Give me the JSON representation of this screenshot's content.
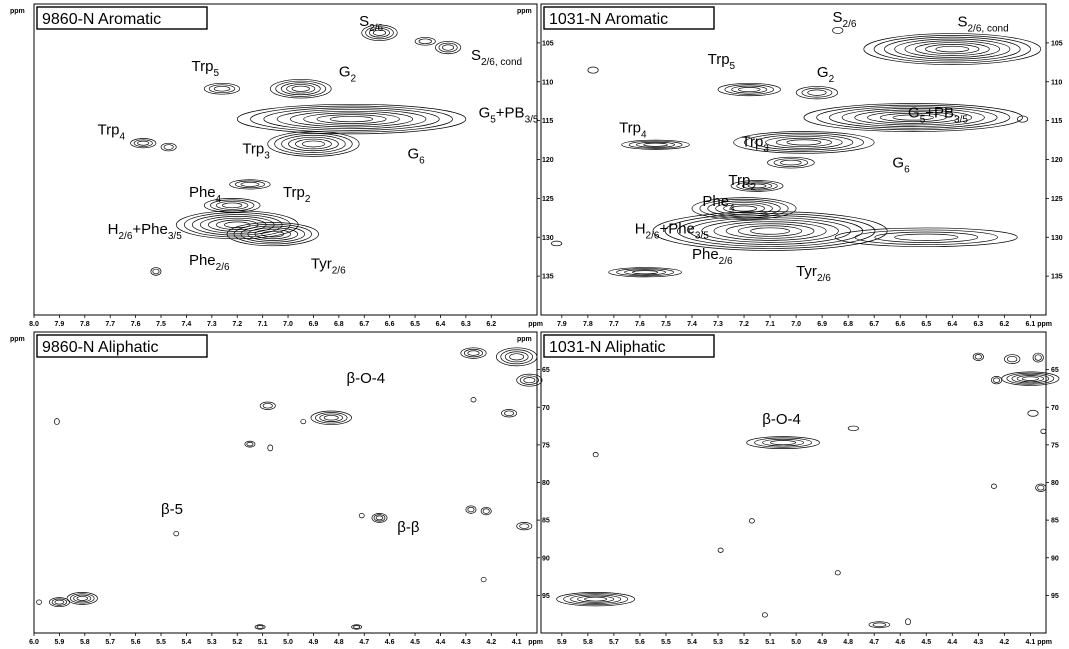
{
  "chart_data": [
    {
      "type": "contour",
      "title": "9860-N Aromatic",
      "x_unit": "ppm",
      "y_unit": "ppm",
      "xlim": [
        8.0,
        6.02
      ],
      "ylim": [
        100,
        140
      ],
      "x_ticks": [
        "8.0",
        "7.9",
        "7.8",
        "7.7",
        "7.6",
        "7.5",
        "7.4",
        "7.3",
        "7.2",
        "7.1",
        "7.0",
        "6.9",
        "6.8",
        "6.7",
        "6.6",
        "6.5",
        "6.4",
        "6.3",
        "6.2"
      ],
      "y_ticks": [
        "105",
        "110",
        "115",
        "120",
        "125",
        "130",
        "135"
      ],
      "labels": [
        {
          "main": "S",
          "sub": "2/6",
          "suffix": "",
          "x": 6.72,
          "y": 102.8
        },
        {
          "main": "S",
          "sub": "2/6, cond",
          "suffix": "",
          "x": 6.28,
          "y": 107.2
        },
        {
          "main": "Trp",
          "sub": "5",
          "suffix": "",
          "x": 7.38,
          "y": 108.6
        },
        {
          "main": "G",
          "sub": "2",
          "suffix": "",
          "x": 6.8,
          "y": 109.3
        },
        {
          "main": "G",
          "sub": "5",
          "suffix": "+PB",
          "sub2": "3/5",
          "x": 6.25,
          "y": 114.6
        },
        {
          "main": "Trp",
          "sub": "4",
          "suffix": "",
          "x": 7.75,
          "y": 116.8
        },
        {
          "main": "Trp",
          "sub": "3",
          "suffix": "",
          "x": 7.18,
          "y": 119.2
        },
        {
          "main": "G",
          "sub": "6",
          "suffix": "",
          "x": 6.53,
          "y": 119.9
        },
        {
          "main": "Phe",
          "sub": "4",
          "suffix": "",
          "x": 7.39,
          "y": 124.8
        },
        {
          "main": "Trp",
          "sub": "2",
          "suffix": "",
          "x": 7.02,
          "y": 124.8
        },
        {
          "main": "H",
          "sub": "2/6",
          "suffix": "+Phe",
          "sub2": "3/5",
          "x": 7.71,
          "y": 129.6
        },
        {
          "main": "Phe",
          "sub": "2/6",
          "suffix": "",
          "x": 7.39,
          "y": 133.6
        },
        {
          "main": "Tyr",
          "sub": "2/6",
          "suffix": "",
          "x": 6.91,
          "y": 134.0
        }
      ],
      "peaks": [
        {
          "x": 6.64,
          "y": 103.7,
          "w": 0.07,
          "h": 1.0,
          "n": 4
        },
        {
          "x": 6.46,
          "y": 104.8,
          "w": 0.04,
          "h": 0.5,
          "n": 2
        },
        {
          "x": 6.37,
          "y": 105.6,
          "w": 0.05,
          "h": 0.8,
          "n": 3
        },
        {
          "x": 7.26,
          "y": 110.9,
          "w": 0.07,
          "h": 0.7,
          "n": 3
        },
        {
          "x": 6.95,
          "y": 110.9,
          "w": 0.12,
          "h": 1.2,
          "n": 5
        },
        {
          "x": 6.75,
          "y": 114.8,
          "w": 0.45,
          "h": 1.9,
          "n": 8
        },
        {
          "x": 6.9,
          "y": 118.0,
          "w": 0.18,
          "h": 1.6,
          "n": 6
        },
        {
          "x": 7.57,
          "y": 117.9,
          "w": 0.05,
          "h": 0.6,
          "n": 3
        },
        {
          "x": 7.47,
          "y": 118.4,
          "w": 0.03,
          "h": 0.5,
          "n": 2
        },
        {
          "x": 7.15,
          "y": 123.2,
          "w": 0.08,
          "h": 0.6,
          "n": 3
        },
        {
          "x": 7.22,
          "y": 125.9,
          "w": 0.11,
          "h": 0.9,
          "n": 4
        },
        {
          "x": 7.2,
          "y": 128.4,
          "w": 0.24,
          "h": 1.8,
          "n": 7
        },
        {
          "x": 7.06,
          "y": 129.6,
          "w": 0.18,
          "h": 1.5,
          "n": 6
        },
        {
          "x": 7.52,
          "y": 134.4,
          "w": 0.02,
          "h": 0.5,
          "n": 2
        }
      ]
    },
    {
      "type": "contour",
      "title": "1031-N Aromatic",
      "x_unit": "ppm",
      "y_unit": "ppm",
      "xlim": [
        7.98,
        6.04
      ],
      "ylim": [
        100,
        140
      ],
      "x_ticks": [
        "7.9",
        "7.8",
        "7.7",
        "7.6",
        "7.5",
        "7.4",
        "7.3",
        "7.2",
        "7.1",
        "7.0",
        "6.9",
        "6.8",
        "6.7",
        "6.6",
        "6.5",
        "6.4",
        "6.3",
        "6.2",
        "6.1"
      ],
      "y_ticks": [
        "105",
        "110",
        "115",
        "120",
        "125",
        "130",
        "135"
      ],
      "labels": [
        {
          "main": "S",
          "sub": "2/6",
          "suffix": "",
          "x": 6.86,
          "y": 102.3
        },
        {
          "main": "S",
          "sub": "2/6, cond",
          "suffix": "",
          "x": 6.38,
          "y": 102.9
        },
        {
          "main": "Trp",
          "sub": "5",
          "suffix": "",
          "x": 7.34,
          "y": 107.7
        },
        {
          "main": "G",
          "sub": "2",
          "suffix": "",
          "x": 6.92,
          "y": 109.4
        },
        {
          "main": "G",
          "sub": "5",
          "suffix": "+PB",
          "sub2": "3/5",
          "x": 6.57,
          "y": 114.6
        },
        {
          "main": "Trp",
          "sub": "4",
          "suffix": "",
          "x": 7.68,
          "y": 116.5
        },
        {
          "main": "Trp",
          "sub": "3",
          "suffix": "",
          "x": 7.21,
          "y": 118.3
        },
        {
          "main": "G",
          "sub": "6",
          "suffix": "",
          "x": 6.63,
          "y": 121.0
        },
        {
          "main": "Trp",
          "sub": "2",
          "suffix": "",
          "x": 7.26,
          "y": 123.3
        },
        {
          "main": "Phe",
          "sub": "4",
          "suffix": "",
          "x": 7.36,
          "y": 126.0
        },
        {
          "main": "H",
          "sub": "2/6",
          "suffix": "+Phe",
          "sub2": "3/5",
          "x": 7.62,
          "y": 129.5
        },
        {
          "main": "Phe",
          "sub": "2/6",
          "suffix": "",
          "x": 7.4,
          "y": 132.8
        },
        {
          "main": "Tyr",
          "sub": "2/6",
          "suffix": "",
          "x": 7.0,
          "y": 135.0
        }
      ],
      "peaks": [
        {
          "x": 6.4,
          "y": 105.8,
          "w": 0.34,
          "h": 2.0,
          "n": 8
        },
        {
          "x": 6.84,
          "y": 103.4,
          "w": 0.02,
          "h": 0.4,
          "n": 1
        },
        {
          "x": 7.78,
          "y": 108.5,
          "w": 0.02,
          "h": 0.4,
          "n": 1
        },
        {
          "x": 7.18,
          "y": 111.0,
          "w": 0.12,
          "h": 0.8,
          "n": 4
        },
        {
          "x": 6.92,
          "y": 111.4,
          "w": 0.08,
          "h": 0.8,
          "n": 3
        },
        {
          "x": 6.55,
          "y": 114.6,
          "w": 0.42,
          "h": 1.8,
          "n": 8
        },
        {
          "x": 6.97,
          "y": 117.8,
          "w": 0.27,
          "h": 1.4,
          "n": 6
        },
        {
          "x": 7.54,
          "y": 118.1,
          "w": 0.13,
          "h": 0.6,
          "n": 4
        },
        {
          "x": 7.02,
          "y": 120.4,
          "w": 0.09,
          "h": 0.7,
          "n": 3
        },
        {
          "x": 7.15,
          "y": 123.4,
          "w": 0.1,
          "h": 0.7,
          "n": 4
        },
        {
          "x": 7.2,
          "y": 126.3,
          "w": 0.2,
          "h": 1.4,
          "n": 6
        },
        {
          "x": 7.1,
          "y": 129.2,
          "w": 0.45,
          "h": 2.5,
          "n": 9
        },
        {
          "x": 6.5,
          "y": 130.0,
          "w": 0.35,
          "h": 1.2,
          "n": 4
        },
        {
          "x": 7.58,
          "y": 134.5,
          "w": 0.14,
          "h": 0.6,
          "n": 4
        },
        {
          "x": 7.92,
          "y": 130.8,
          "w": 0.02,
          "h": 0.3,
          "n": 1
        },
        {
          "x": 6.13,
          "y": 114.8,
          "w": 0.02,
          "h": 0.4,
          "n": 1
        }
      ]
    },
    {
      "type": "contour",
      "title": "9860-N Aliphatic",
      "x_unit": "ppm",
      "y_unit": "ppm",
      "xlim": [
        6.0,
        4.02
      ],
      "ylim": [
        60,
        100
      ],
      "x_ticks": [
        "6.0",
        "5.9",
        "5.8",
        "5.7",
        "5.6",
        "5.5",
        "5.4",
        "5.3",
        "5.2",
        "5.1",
        "5.0",
        "4.9",
        "4.8",
        "4.7",
        "4.6",
        "4.5",
        "4.4",
        "4.3",
        "4.2",
        "4.1"
      ],
      "y_ticks": [
        "65",
        "70",
        "75",
        "80",
        "85",
        "90",
        "95"
      ],
      "labels": [
        {
          "main": "β-O-4",
          "sub": "",
          "suffix": "",
          "x": 4.77,
          "y": 66.8
        },
        {
          "main": "β-5",
          "sub": "",
          "suffix": "",
          "x": 5.5,
          "y": 84.2
        },
        {
          "main": "β-β",
          "sub": "",
          "suffix": "",
          "x": 4.57,
          "y": 86.6
        }
      ],
      "peaks": [
        {
          "x": 4.83,
          "y": 71.4,
          "w": 0.08,
          "h": 0.9,
          "n": 4
        },
        {
          "x": 5.08,
          "y": 69.8,
          "w": 0.03,
          "h": 0.5,
          "n": 2
        },
        {
          "x": 5.15,
          "y": 74.9,
          "w": 0.02,
          "h": 0.4,
          "n": 2
        },
        {
          "x": 5.07,
          "y": 75.4,
          "w": 0.01,
          "h": 0.4,
          "n": 1
        },
        {
          "x": 4.94,
          "y": 71.9,
          "w": 0.01,
          "h": 0.3,
          "n": 1
        },
        {
          "x": 5.91,
          "y": 71.9,
          "w": 0.01,
          "h": 0.4,
          "n": 1
        },
        {
          "x": 4.27,
          "y": 69.0,
          "w": 0.01,
          "h": 0.3,
          "n": 1
        },
        {
          "x": 4.13,
          "y": 70.8,
          "w": 0.03,
          "h": 0.5,
          "n": 2
        },
        {
          "x": 4.1,
          "y": 63.3,
          "w": 0.08,
          "h": 1.2,
          "n": 4
        },
        {
          "x": 4.27,
          "y": 62.8,
          "w": 0.05,
          "h": 0.7,
          "n": 3
        },
        {
          "x": 4.05,
          "y": 66.4,
          "w": 0.05,
          "h": 0.8,
          "n": 3
        },
        {
          "x": 4.64,
          "y": 84.7,
          "w": 0.03,
          "h": 0.6,
          "n": 3
        },
        {
          "x": 4.71,
          "y": 84.4,
          "w": 0.01,
          "h": 0.3,
          "n": 1
        },
        {
          "x": 4.28,
          "y": 83.6,
          "w": 0.02,
          "h": 0.5,
          "n": 2
        },
        {
          "x": 4.22,
          "y": 83.8,
          "w": 0.02,
          "h": 0.5,
          "n": 2
        },
        {
          "x": 4.07,
          "y": 85.8,
          "w": 0.03,
          "h": 0.5,
          "n": 2
        },
        {
          "x": 5.44,
          "y": 86.8,
          "w": 0.01,
          "h": 0.3,
          "n": 1
        },
        {
          "x": 5.81,
          "y": 95.4,
          "w": 0.06,
          "h": 0.8,
          "n": 4
        },
        {
          "x": 5.9,
          "y": 95.9,
          "w": 0.04,
          "h": 0.6,
          "n": 3
        },
        {
          "x": 5.98,
          "y": 95.9,
          "w": 0.01,
          "h": 0.3,
          "n": 1
        },
        {
          "x": 5.11,
          "y": 99.2,
          "w": 0.02,
          "h": 0.3,
          "n": 2
        },
        {
          "x": 4.73,
          "y": 99.2,
          "w": 0.02,
          "h": 0.3,
          "n": 2
        },
        {
          "x": 4.23,
          "y": 92.9,
          "w": 0.01,
          "h": 0.3,
          "n": 1
        }
      ]
    },
    {
      "type": "contour",
      "title": "1031-N Aliphatic",
      "x_unit": "ppm",
      "y_unit": "ppm",
      "xlim": [
        5.98,
        4.04
      ],
      "ylim": [
        60,
        100
      ],
      "x_ticks": [
        "5.9",
        "5.8",
        "5.7",
        "5.6",
        "5.5",
        "5.4",
        "5.3",
        "5.2",
        "5.1",
        "5.0",
        "4.9",
        "4.8",
        "4.7",
        "4.6",
        "4.5",
        "4.4",
        "4.3",
        "4.2",
        "4.1"
      ],
      "y_ticks": [
        "65",
        "70",
        "75",
        "80",
        "85",
        "90",
        "95"
      ],
      "labels": [
        {
          "main": "β-O-4",
          "sub": "",
          "suffix": "",
          "x": 5.13,
          "y": 72.2
        }
      ],
      "peaks": [
        {
          "x": 5.05,
          "y": 74.7,
          "w": 0.14,
          "h": 0.8,
          "n": 4
        },
        {
          "x": 4.78,
          "y": 72.8,
          "w": 0.02,
          "h": 0.3,
          "n": 1
        },
        {
          "x": 4.1,
          "y": 66.2,
          "w": 0.11,
          "h": 0.9,
          "n": 5
        },
        {
          "x": 4.23,
          "y": 66.4,
          "w": 0.02,
          "h": 0.5,
          "n": 2
        },
        {
          "x": 4.3,
          "y": 63.3,
          "w": 0.02,
          "h": 0.5,
          "n": 2
        },
        {
          "x": 4.17,
          "y": 63.6,
          "w": 0.03,
          "h": 0.6,
          "n": 2
        },
        {
          "x": 4.07,
          "y": 63.4,
          "w": 0.02,
          "h": 0.6,
          "n": 2
        },
        {
          "x": 4.09,
          "y": 70.8,
          "w": 0.02,
          "h": 0.4,
          "n": 1
        },
        {
          "x": 4.05,
          "y": 73.2,
          "w": 0.01,
          "h": 0.3,
          "n": 1
        },
        {
          "x": 4.06,
          "y": 80.7,
          "w": 0.02,
          "h": 0.5,
          "n": 2
        },
        {
          "x": 4.24,
          "y": 80.5,
          "w": 0.01,
          "h": 0.3,
          "n": 1
        },
        {
          "x": 5.77,
          "y": 95.5,
          "w": 0.15,
          "h": 0.9,
          "n": 5
        },
        {
          "x": 5.77,
          "y": 76.3,
          "w": 0.01,
          "h": 0.3,
          "n": 1
        },
        {
          "x": 5.29,
          "y": 89.0,
          "w": 0.01,
          "h": 0.3,
          "n": 1
        },
        {
          "x": 5.17,
          "y": 85.1,
          "w": 0.01,
          "h": 0.3,
          "n": 1
        },
        {
          "x": 4.84,
          "y": 92.0,
          "w": 0.01,
          "h": 0.3,
          "n": 1
        },
        {
          "x": 4.68,
          "y": 98.9,
          "w": 0.04,
          "h": 0.4,
          "n": 2
        },
        {
          "x": 4.57,
          "y": 98.5,
          "w": 0.01,
          "h": 0.4,
          "n": 1
        },
        {
          "x": 5.12,
          "y": 97.6,
          "w": 0.01,
          "h": 0.3,
          "n": 1
        }
      ]
    }
  ]
}
